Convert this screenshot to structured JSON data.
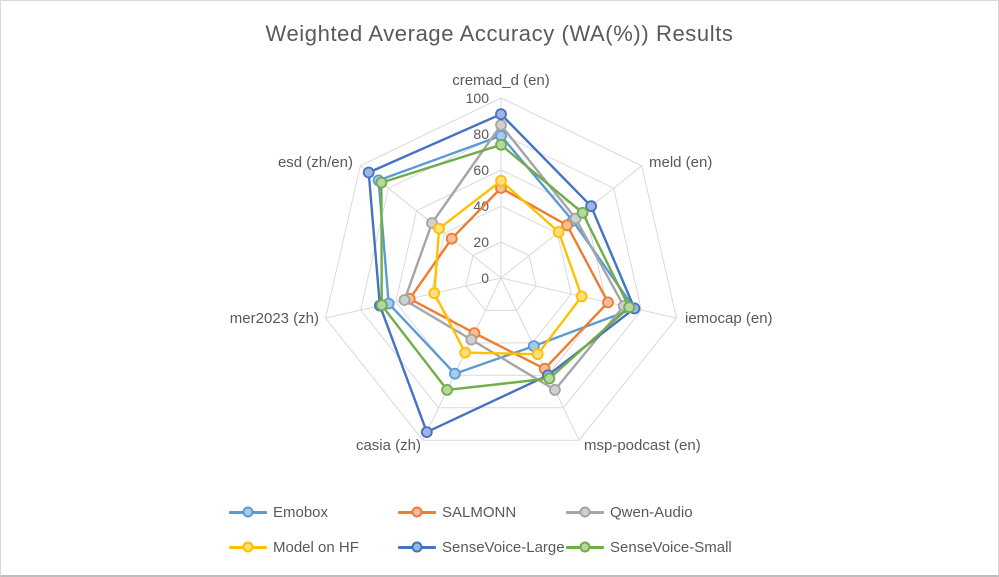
{
  "chart_data": {
    "type": "radar",
    "title": "Weighted Average Accuracy (WA(%)) Results",
    "categories": [
      "cremad_d (en)",
      "meld (en)",
      "iemocap (en)",
      "msp-podcast (en)",
      "casia (zh)",
      "mer2023 (zh)",
      "esd (zh/en)"
    ],
    "axis": {
      "min": 0,
      "max": 100,
      "ticks": [
        0,
        20,
        40,
        60,
        80,
        100
      ]
    },
    "grid": true,
    "legend_position": "bottom",
    "series": [
      {
        "name": "Emobox",
        "color": "#5B9BD5",
        "marker_fill": "#A8CBEA",
        "values": [
          79,
          51,
          76,
          42,
          59,
          64,
          87
        ]
      },
      {
        "name": "SALMONN",
        "color": "#ED7D31",
        "marker_fill": "#F6BE98",
        "values": [
          50,
          47,
          61,
          56,
          34,
          52,
          35
        ]
      },
      {
        "name": "Qwen-Audio",
        "color": "#A5A5A5",
        "marker_fill": "#D0D0D0",
        "values": [
          85,
          53,
          70,
          69,
          38,
          55,
          49
        ]
      },
      {
        "name": "Model on HF",
        "color": "#FFC000",
        "marker_fill": "#FFDD80",
        "values": [
          54,
          41,
          46,
          47,
          46,
          38,
          44
        ]
      },
      {
        "name": "SenseVoice-Large",
        "color": "#4472C4",
        "marker_fill": "#9FB5E1",
        "values": [
          91,
          64,
          76,
          60,
          95,
          69,
          94
        ]
      },
      {
        "name": "SenseVoice-Small",
        "color": "#70AD47",
        "marker_fill": "#B7D6A3",
        "values": [
          74,
          58,
          73,
          62,
          69,
          68,
          85
        ]
      }
    ]
  },
  "colors": {
    "title_text": "#595959",
    "axis_label_text": "#595959",
    "tick_label_text": "#595959",
    "gridlines": "#D9D9D9"
  }
}
